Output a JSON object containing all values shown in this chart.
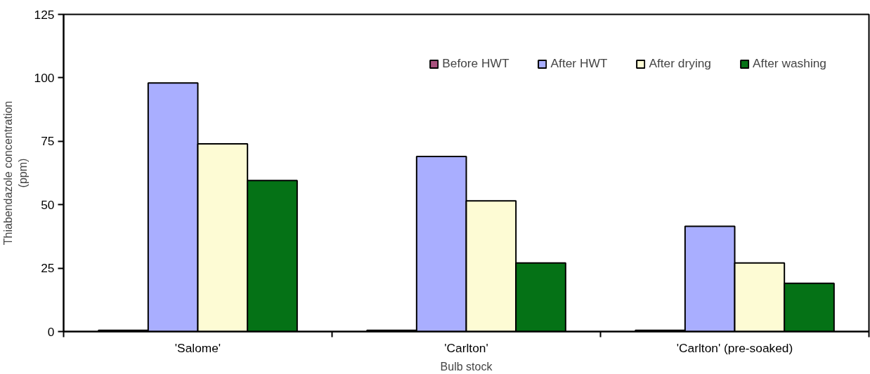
{
  "chart_data": {
    "type": "bar",
    "xlabel": "Bulb stock",
    "ylabel": "Thiabendazole concentration\n(ppm)",
    "categories": [
      "'Salome'",
      "'Carlton'",
      "'Carlton' (pre-soaked)"
    ],
    "series": [
      {
        "name": "Before HWT",
        "color": "#a8527e",
        "values": [
          0.5,
          0.5,
          0.5
        ]
      },
      {
        "name": "After HWT",
        "color": "#a9aeff",
        "values": [
          98,
          69,
          41.5
        ]
      },
      {
        "name": "After drying",
        "color": "#fdfbd4",
        "values": [
          74,
          51.5,
          27
        ]
      },
      {
        "name": "After washing",
        "color": "#057216",
        "values": [
          59.5,
          27,
          19
        ]
      }
    ],
    "ylim": [
      0,
      125
    ],
    "yticks": [
      0,
      25,
      50,
      75,
      100,
      125
    ],
    "grid": false,
    "legend": "top right"
  }
}
